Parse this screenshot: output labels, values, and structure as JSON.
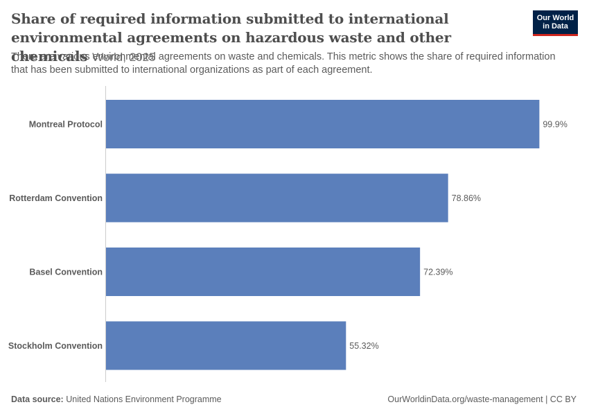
{
  "header": {
    "title": "Share of required information submitted to international environmental agreements on hazardous waste and other chemicals",
    "context": "World, 2025",
    "subtitle": "There are various environmental agreements on waste and chemicals. This metric shows the share of required information that has been submitted to international organizations as part of each agreement."
  },
  "logo": {
    "line1": "Our World",
    "line2": "in Data"
  },
  "footer": {
    "source_label": "Data source:",
    "source_value": "United Nations Environment Programme",
    "url": "OurWorldinData.org/waste-management | CC BY"
  },
  "colors": {
    "bar": "#5b7fbb",
    "axis": "#cccccc",
    "logo_bg": "#002147",
    "logo_accent": "#ce261e"
  },
  "chart_data": {
    "type": "bar",
    "orientation": "horizontal",
    "categories": [
      "Montreal Protocol",
      "Rotterdam Convention",
      "Basel Convention",
      "Stockholm Convention"
    ],
    "values": [
      99.9,
      78.86,
      72.39,
      55.32
    ],
    "value_labels": [
      "99.9%",
      "78.86%",
      "72.39%",
      "55.32%"
    ],
    "unit": "%",
    "xlim": [
      0,
      100
    ],
    "grid": false
  }
}
